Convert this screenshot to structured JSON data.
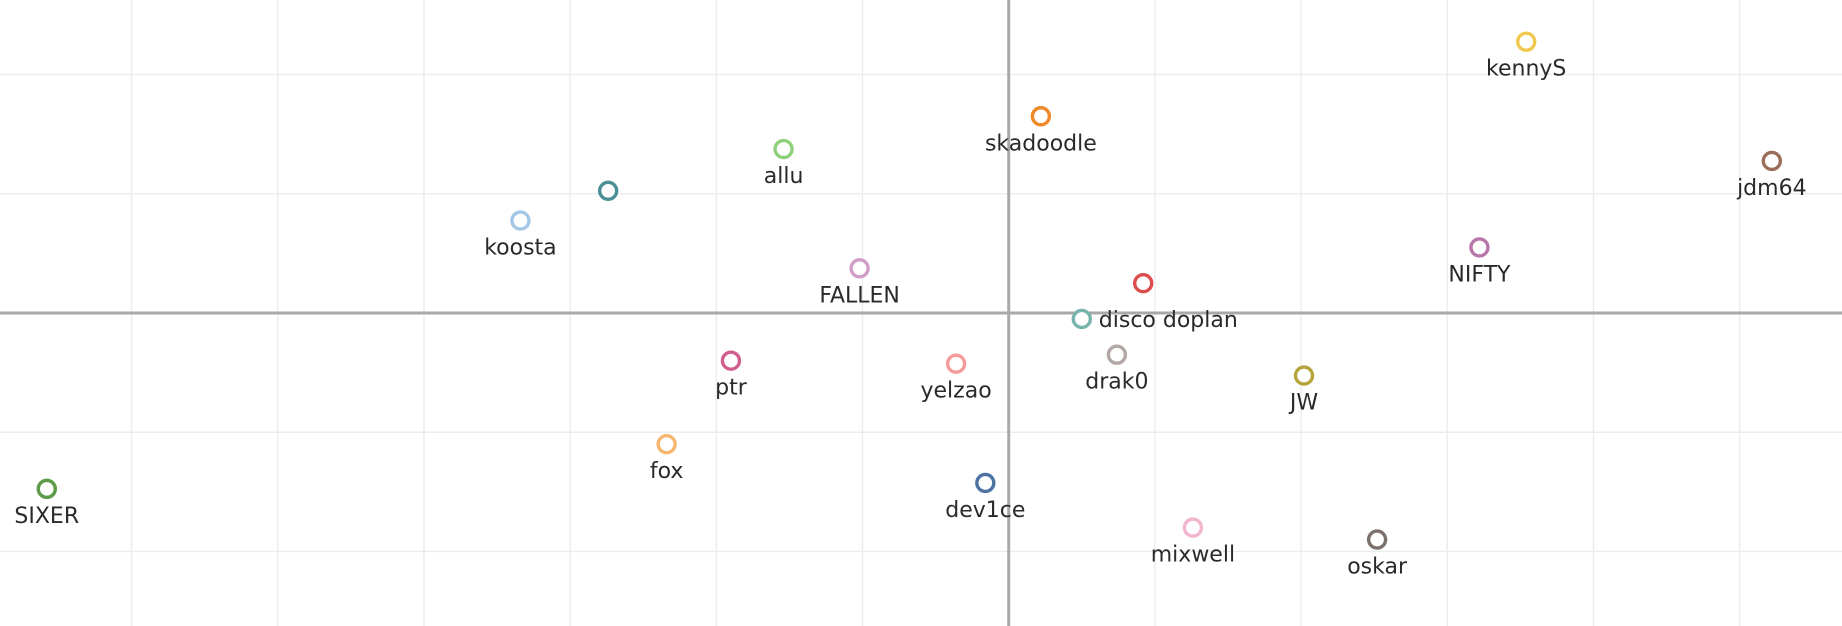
{
  "chart_data": {
    "type": "scatter",
    "title": "",
    "xlabel": "",
    "ylabel": "",
    "xlim": [
      -34.5,
      28.5
    ],
    "ylim": [
      -10.5,
      10.5
    ],
    "x_grid_step": 5,
    "y_grid_step": 4,
    "grid": true,
    "zero_lines": true,
    "legend": "none",
    "marker": "open-circle",
    "points": [
      {
        "label": "kennyS",
        "x": 17.7,
        "y": 9.1,
        "color": "#f1c951"
      },
      {
        "label": "skadoodle",
        "x": 1.1,
        "y": 6.6,
        "color": "#ef8a2b"
      },
      {
        "label": "allu",
        "x": -7.7,
        "y": 5.5,
        "color": "#8fd07b"
      },
      {
        "label": "",
        "x": -13.7,
        "y": 4.1,
        "color": "#4a9096"
      },
      {
        "label": "koosta",
        "x": -16.7,
        "y": 3.1,
        "color": "#a3c7e6"
      },
      {
        "label": "jdm64",
        "x": 26.1,
        "y": 5.1,
        "color": "#9a6e59"
      },
      {
        "label": "NIFTY",
        "x": 16.1,
        "y": 2.2,
        "color": "#b877a8"
      },
      {
        "label": "FALLEN",
        "x": -5.1,
        "y": 1.5,
        "color": "#d29cc8"
      },
      {
        "label": "",
        "x": 4.6,
        "y": 1.0,
        "color": "#dc4e4d"
      },
      {
        "label": "disco doplan",
        "x": 2.5,
        "y": -0.2,
        "color": "#76b4ad"
      },
      {
        "label": "drak0",
        "x": 3.7,
        "y": -1.4,
        "color": "#b4a8a6"
      },
      {
        "label": "ptr",
        "x": -9.5,
        "y": -1.6,
        "color": "#d05f8d"
      },
      {
        "label": "yelzao",
        "x": -1.8,
        "y": -1.7,
        "color": "#f59b9b"
      },
      {
        "label": "JW",
        "x": 10.1,
        "y": -2.1,
        "color": "#b5a43d"
      },
      {
        "label": "fox",
        "x": -11.7,
        "y": -4.4,
        "color": "#f7b66f"
      },
      {
        "label": "SIXER",
        "x": -32.9,
        "y": -5.9,
        "color": "#5d9a47"
      },
      {
        "label": "dev1ce",
        "x": -0.8,
        "y": -5.7,
        "color": "#4e73a3"
      },
      {
        "label": "mixwell",
        "x": 6.3,
        "y": -7.2,
        "color": "#f2b5cf"
      },
      {
        "label": "oskar",
        "x": 12.6,
        "y": -7.6,
        "color": "#7b706b"
      }
    ]
  }
}
